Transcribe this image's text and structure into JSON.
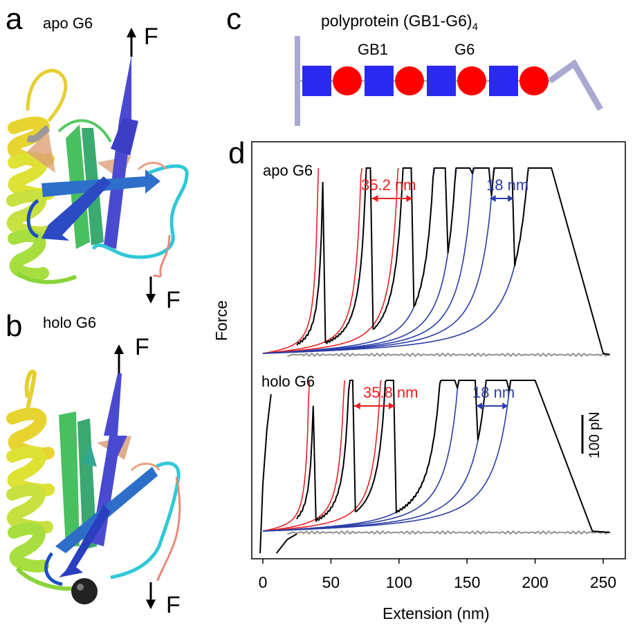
{
  "panels": {
    "a": {
      "letter": "a",
      "title": "apo G6",
      "force_top": "F",
      "force_bottom": "F"
    },
    "b": {
      "letter": "b",
      "title": "holo G6",
      "force_top": "F",
      "force_bottom": "F"
    },
    "c": {
      "letter": "c",
      "title": "polyprotein (GB1-G6)",
      "subscript": "4",
      "label_gb1": "GB1",
      "label_g6": "G6",
      "colors": {
        "gb1": "#2a2af0",
        "g6": "#ff0000",
        "linker": "#a8a8d0"
      }
    },
    "d": {
      "letter": "d"
    }
  },
  "chart_data": {
    "type": "line",
    "xlabel": "Extension (nm)",
    "ylabel": "Force",
    "xlim": [
      -5,
      260
    ],
    "xticks": [
      0,
      50,
      100,
      150,
      200,
      250
    ],
    "scale_bar": "100 pN",
    "colors": {
      "gb1_fit": "#2a3ca8",
      "g6_fit": "#e82020",
      "trace": "#000000",
      "baseline": "#909090"
    },
    "traces": [
      {
        "name": "apo G6",
        "g6_increment": "35.2 nm",
        "gb1_increment": "18 nm",
        "g6_peaks_x": [
          45,
          80,
          110
        ],
        "gb1_peaks_x": [
          135,
          153,
          167,
          184,
          212
        ],
        "rupture_end_x": 250
      },
      {
        "name": "holo G6",
        "g6_increment": "35.8 nm",
        "gb1_increment": "18 nm",
        "g6_peaks_x": [
          38,
          67,
          97
        ],
        "gb1_peaks_x": [
          142,
          157,
          180,
          200
        ],
        "rupture_end_x": 242
      }
    ]
  }
}
